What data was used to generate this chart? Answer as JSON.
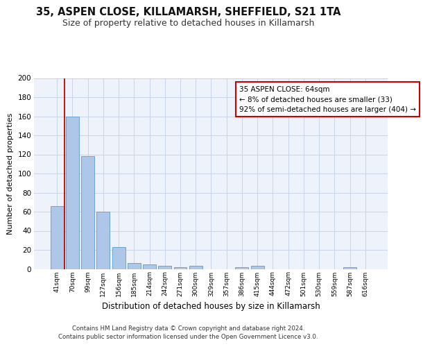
{
  "title": "35, ASPEN CLOSE, KILLAMARSH, SHEFFIELD, S21 1TA",
  "subtitle": "Size of property relative to detached houses in Killamarsh",
  "xlabel": "Distribution of detached houses by size in Killamarsh",
  "ylabel": "Number of detached properties",
  "bar_color": "#aec6e8",
  "bar_edge_color": "#5b9bd5",
  "categories": [
    "41sqm",
    "70sqm",
    "99sqm",
    "127sqm",
    "156sqm",
    "185sqm",
    "214sqm",
    "242sqm",
    "271sqm",
    "300sqm",
    "329sqm",
    "357sqm",
    "386sqm",
    "415sqm",
    "444sqm",
    "472sqm",
    "501sqm",
    "530sqm",
    "559sqm",
    "587sqm",
    "616sqm"
  ],
  "values": [
    66,
    160,
    118,
    60,
    23,
    6,
    5,
    3,
    2,
    3,
    0,
    0,
    2,
    3,
    0,
    0,
    0,
    0,
    0,
    2,
    0
  ],
  "ylim": [
    0,
    200
  ],
  "yticks": [
    0,
    20,
    40,
    60,
    80,
    100,
    120,
    140,
    160,
    180,
    200
  ],
  "annotation_text": "35 ASPEN CLOSE: 64sqm\n← 8% of detached houses are smaller (33)\n92% of semi-detached houses are larger (404) →",
  "annotation_box_color": "#ffffff",
  "annotation_box_edge_color": "#cc0000",
  "vline_color": "#cc0000",
  "property_bin_index": 1,
  "grid_color": "#c8d4e8",
  "background_color": "#edf2fb",
  "footer_line1": "Contains HM Land Registry data © Crown copyright and database right 2024.",
  "footer_line2": "Contains public sector information licensed under the Open Government Licence v3.0."
}
